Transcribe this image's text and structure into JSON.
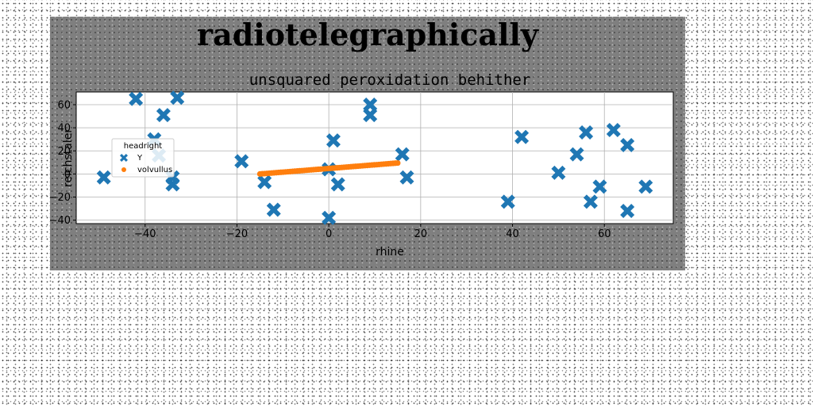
{
  "chart_data": {
    "type": "scatter",
    "suptitle": "radiotelegraphically",
    "title": "unsquared peroxidation behither",
    "xlabel": "rhine",
    "ylabel": "reichstaler",
    "xlim": [
      -55,
      75
    ],
    "ylim": [
      -43,
      71
    ],
    "xticks": [
      -40,
      -20,
      0,
      20,
      40,
      60
    ],
    "yticks": [
      -40,
      -20,
      0,
      20,
      40,
      60
    ],
    "grid": true,
    "legend": {
      "title": "headright",
      "location": "center-left"
    },
    "series": [
      {
        "name": "Y",
        "marker": "X",
        "color": "#1f77b4",
        "points": [
          [
            -49,
            -3
          ],
          [
            -42,
            65
          ],
          [
            -38,
            30
          ],
          [
            -37,
            16
          ],
          [
            -36,
            51
          ],
          [
            -34,
            -3
          ],
          [
            -34,
            -9
          ],
          [
            -33,
            66
          ],
          [
            -19,
            11
          ],
          [
            -14,
            -7
          ],
          [
            -12,
            -31
          ],
          [
            0,
            4
          ],
          [
            0,
            -38
          ],
          [
            1,
            29
          ],
          [
            2,
            -9
          ],
          [
            9,
            60
          ],
          [
            9,
            51
          ],
          [
            16,
            17
          ],
          [
            17,
            -3
          ],
          [
            39,
            -24
          ],
          [
            42,
            32
          ],
          [
            50,
            1
          ],
          [
            54,
            17
          ],
          [
            56,
            36
          ],
          [
            57,
            -24
          ],
          [
            59,
            -11
          ],
          [
            62,
            38
          ],
          [
            65,
            25
          ],
          [
            65,
            -32
          ],
          [
            69,
            -11
          ]
        ]
      },
      {
        "name": "volvullus",
        "marker": "o",
        "color": "#ff7f0e",
        "x_range": [
          -15,
          15
        ],
        "y_range": [
          0,
          9.5
        ]
      }
    ]
  },
  "colors": {
    "figure_bg": "#7f7f7f",
    "axes_bg": "#ffffff",
    "grid": "#b0b0b0"
  }
}
